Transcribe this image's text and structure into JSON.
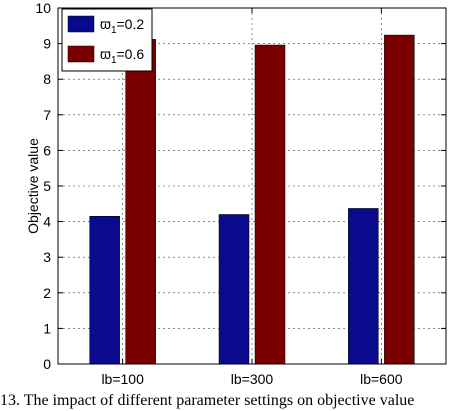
{
  "chart_data": {
    "type": "bar",
    "categories": [
      "lb=100",
      "lb=300",
      "lb=600"
    ],
    "series": [
      {
        "name": "ϖ1=0.2",
        "values": [
          4.15,
          4.2,
          4.37
        ],
        "color": "#0a0a8c"
      },
      {
        "name": "ϖ1=0.6",
        "values": [
          9.12,
          8.96,
          9.24
        ],
        "color": "#7a0000"
      }
    ],
    "legend": [
      {
        "base": "ϖ",
        "sub": "1",
        "rest": "=0.2"
      },
      {
        "base": "ϖ",
        "sub": "1",
        "rest": "=0.6"
      }
    ],
    "ylabel": "Objective value",
    "ylim": [
      0,
      10
    ],
    "yticks": [
      0,
      1,
      2,
      3,
      4,
      5,
      6,
      7,
      8,
      9,
      10
    ],
    "grid": true,
    "legend_position": "top-left"
  },
  "caption": "13.    The impact of different parameter settings on objective value"
}
